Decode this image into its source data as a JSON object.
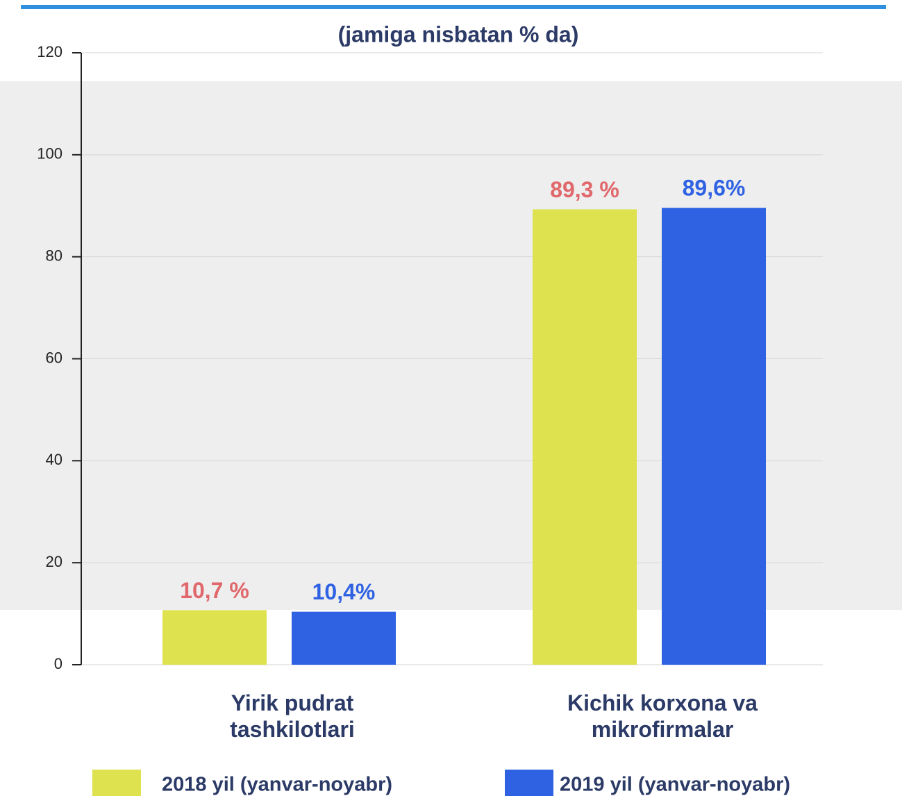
{
  "chart_data": {
    "type": "bar",
    "title": "(jamiga nisbatan % da)",
    "categories": [
      "Yirik pudrat tashkilotlari",
      "Kichik korxona va mikrofirmalar"
    ],
    "series": [
      {
        "name": "2018 yil (yanvar-noyabr)",
        "color": "#dde24e",
        "label_color": "#e0676b",
        "values": [
          10.7,
          89.3
        ],
        "value_labels": [
          "10,7 %",
          "89,3 %"
        ]
      },
      {
        "name": "2019 yil (yanvar-noyabr)",
        "color": "#2f62e3",
        "label_color": "#2f62e3",
        "values": [
          10.4,
          89.6
        ],
        "value_labels": [
          "10,4%",
          "89,6%"
        ]
      }
    ],
    "ylim": [
      0,
      120
    ],
    "yticks": [
      0,
      20,
      40,
      60,
      80,
      100,
      120
    ],
    "grid": true,
    "legend": "bottom"
  }
}
